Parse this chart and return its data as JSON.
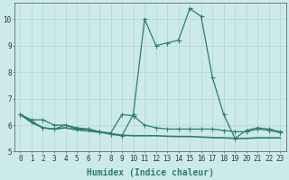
{
  "x": [
    0,
    1,
    2,
    3,
    4,
    5,
    6,
    7,
    8,
    9,
    10,
    11,
    12,
    13,
    14,
    15,
    16,
    17,
    18,
    19,
    20,
    21,
    22,
    23
  ],
  "line1": [
    6.4,
    6.2,
    6.2,
    6.0,
    6.0,
    5.9,
    5.85,
    5.75,
    5.65,
    5.6,
    6.4,
    10.0,
    9.0,
    9.1,
    9.2,
    10.4,
    10.1,
    7.8,
    6.4,
    5.5,
    5.8,
    5.9,
    5.85,
    5.75
  ],
  "line2": [
    6.4,
    6.15,
    5.9,
    5.85,
    6.0,
    5.85,
    5.85,
    5.75,
    5.7,
    6.4,
    6.35,
    6.0,
    5.9,
    5.85,
    5.85,
    5.85,
    5.85,
    5.85,
    5.8,
    5.75,
    5.75,
    5.85,
    5.8,
    5.72
  ],
  "line3": [
    6.4,
    6.1,
    5.9,
    5.85,
    5.9,
    5.82,
    5.78,
    5.73,
    5.68,
    5.62,
    5.6,
    5.6,
    5.6,
    5.58,
    5.57,
    5.57,
    5.55,
    5.53,
    5.52,
    5.5,
    5.5,
    5.52,
    5.52,
    5.52
  ],
  "line_color": "#2d7d6f",
  "bg_color": "#cceaea",
  "grid_color": "#b8d8d8",
  "xlabel": "Humidex (Indice chaleur)",
  "ylim": [
    5,
    10.6
  ],
  "xlim": [
    -0.5,
    23.5
  ],
  "yticks": [
    5,
    6,
    7,
    8,
    9,
    10
  ],
  "xticks": [
    0,
    1,
    2,
    3,
    4,
    5,
    6,
    7,
    8,
    9,
    10,
    11,
    12,
    13,
    14,
    15,
    16,
    17,
    18,
    19,
    20,
    21,
    22,
    23
  ],
  "tick_fontsize": 5.5,
  "xlabel_fontsize": 7.0,
  "marker_size": 2.0,
  "lw": 0.9
}
